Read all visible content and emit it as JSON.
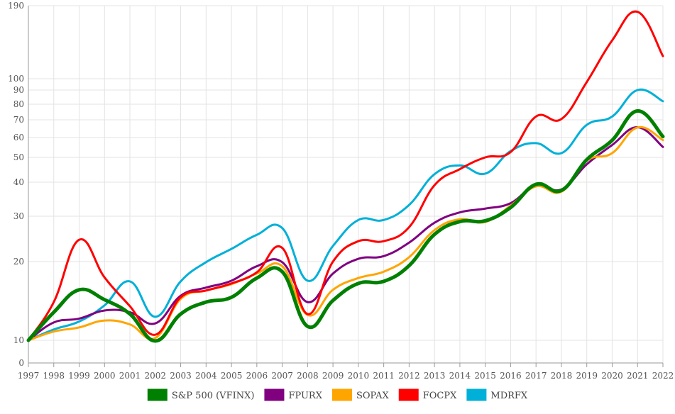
{
  "chart_data": {
    "type": "line",
    "title": "",
    "xlabel": "",
    "ylabel": "",
    "y_scale": "log",
    "ylim": [
      0,
      190
    ],
    "grid": true,
    "legend_position": "bottom",
    "x": [
      "1997",
      "1998",
      "1999",
      "2000",
      "2001",
      "2002",
      "2003",
      "2004",
      "2005",
      "2006",
      "2007",
      "2008",
      "2009",
      "2010",
      "2011",
      "2012",
      "2013",
      "2014",
      "2015",
      "2016",
      "2017",
      "2018",
      "2019",
      "2020",
      "2021",
      "2022"
    ],
    "y_ticks": [
      "0",
      "10",
      "20",
      "30",
      "40",
      "50",
      "60",
      "70",
      "80",
      "90",
      "100",
      "190"
    ],
    "series": [
      {
        "name": "S&P 500 (VFINX)",
        "color": "#008000",
        "width": 5,
        "values": [
          10,
          12.8,
          15.6,
          14.3,
          12.6,
          9.7,
          12.6,
          14.0,
          14.6,
          17.3,
          18.3,
          11.3,
          14.2,
          16.5,
          16.8,
          19.3,
          25.5,
          28.6,
          28.8,
          32.3,
          39.3,
          37.3,
          49.0,
          58.5,
          75.5,
          60.5
        ]
      },
      {
        "name": "FPURX",
        "color": "#800080",
        "width": 3,
        "values": [
          10,
          11.7,
          12.1,
          13.0,
          12.8,
          11.6,
          14.8,
          15.9,
          16.9,
          19.2,
          19.9,
          14.0,
          18.0,
          20.5,
          21.0,
          23.7,
          28.3,
          31.0,
          32.0,
          33.5,
          39.0,
          37.6,
          47.0,
          56.0,
          65.6,
          55.0
        ]
      },
      {
        "name": "SOPAX",
        "color": "#FFA500",
        "width": 3,
        "values": [
          10,
          10.8,
          11.2,
          11.9,
          11.5,
          10.2,
          14.4,
          15.5,
          16.4,
          18.0,
          19.2,
          12.5,
          15.6,
          17.3,
          18.3,
          20.8,
          26.5,
          29.2,
          28.5,
          32.8,
          38.6,
          36.9,
          48.5,
          52.0,
          65.5,
          58.6
        ]
      },
      {
        "name": "FOCPX",
        "color": "#FF0000",
        "width": 3,
        "values": [
          10,
          14.0,
          24.3,
          17.4,
          13.5,
          10.5,
          14.6,
          15.5,
          16.5,
          18.2,
          22.6,
          12.6,
          20.0,
          24.0,
          24.0,
          27.2,
          39.0,
          45.0,
          50.0,
          52.5,
          72.0,
          70.5,
          97.0,
          140.0,
          180.0,
          122.0
        ]
      },
      {
        "name": "MDRFX",
        "color": "#00B0D8",
        "width": 3,
        "values": [
          10,
          11.0,
          11.8,
          13.6,
          16.8,
          12.3,
          16.8,
          19.9,
          22.4,
          25.4,
          27.0,
          16.9,
          23.0,
          29.0,
          29.0,
          33.0,
          43.0,
          46.5,
          43.2,
          53.0,
          57.0,
          52.0,
          67.0,
          72.0,
          90.0,
          82.0
        ]
      }
    ]
  }
}
